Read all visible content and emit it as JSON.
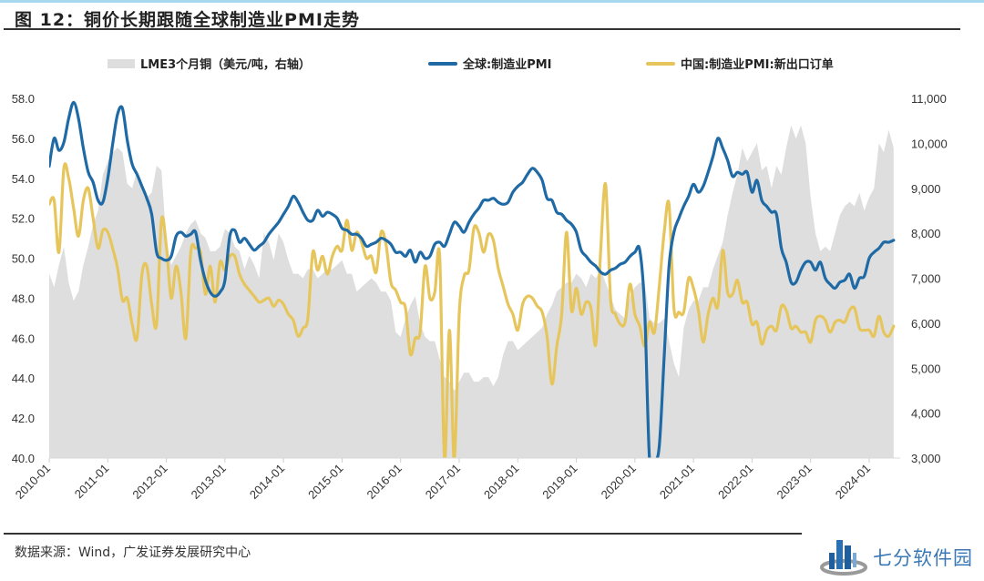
{
  "figure": {
    "title": "图 12：铜价长期跟随全球制造业PMI走势",
    "source": "数据来源：Wind，广发证券发展研究中心",
    "watermark": "七分软件园"
  },
  "colors": {
    "area": "#dedede",
    "global_pmi": "#1f6aa5",
    "china_export": "#e6c65c"
  },
  "chart_data": {
    "type": "line",
    "title": "铜价长期跟随全球制造业PMI走势",
    "xlabel": "",
    "ylabel": "",
    "y2label": "",
    "ylim": [
      40,
      58
    ],
    "y2lim": [
      3000,
      11000
    ],
    "yticks": [
      "58.0",
      "56.0",
      "54.0",
      "52.0",
      "50.0",
      "48.0",
      "46.0",
      "44.0",
      "42.0",
      "40.0"
    ],
    "y2ticks": [
      "11,000",
      "10,000",
      "9,000",
      "8,000",
      "7,000",
      "6,000",
      "5,000",
      "4,000",
      "3,000"
    ],
    "xticks": [
      "2010-01",
      "2011-01",
      "2012-01",
      "2013-01",
      "2014-01",
      "2015-01",
      "2016-01",
      "2017-01",
      "2018-01",
      "2019-01",
      "2020-01",
      "2021-01",
      "2022-01",
      "2023-01",
      "2024-01"
    ],
    "x_start": "2010-01",
    "x_end": "2024-06",
    "grid": false,
    "legend_position": "top",
    "series": [
      {
        "name": "LME3个月铜（美元/吨，右轴）",
        "type": "area",
        "axis": "right",
        "values": [
          7100,
          6800,
          7300,
          7700,
          6900,
          6500,
          6700,
          7300,
          7700,
          8200,
          8500,
          9300,
          9600,
          9800,
          9900,
          9800,
          9100,
          9000,
          9400,
          9000,
          8800,
          8900,
          9500,
          9400,
          7800,
          7300,
          7500,
          7700,
          8000,
          8200,
          8300,
          8000,
          7900,
          7600,
          7600,
          7700,
          8100,
          8000,
          7700,
          7600,
          7200,
          7500,
          7300,
          7000,
          7600,
          8000,
          7800,
          7400,
          8000,
          7800,
          7400,
          7100,
          7100,
          7000,
          7200,
          7200,
          7000,
          7100,
          7200,
          7200,
          7300,
          7400,
          7100,
          7100,
          6700,
          6800,
          6900,
          7000,
          6900,
          6700,
          6700,
          6500,
          5800,
          5700,
          6100,
          6400,
          6600,
          6000,
          5700,
          5600,
          5600,
          5200,
          4800,
          4700,
          4500,
          4700,
          4900,
          4900,
          4700,
          4700,
          4800,
          4800,
          4600,
          4800,
          5300,
          5600,
          5600,
          5400,
          5500,
          5600,
          5700,
          5800,
          5900,
          6200,
          6400,
          6700,
          6800,
          6900,
          6900,
          7100,
          7000,
          6800,
          7100,
          7000,
          7200,
          6900,
          6600,
          6300,
          6200,
          6100,
          6600,
          6800,
          6900,
          6900,
          6100,
          6000,
          6000,
          6100,
          5600,
          5100,
          4800,
          5100,
          5900,
          6300,
          6500,
          6500,
          6800,
          6800,
          7200,
          7500,
          7800,
          8400,
          8900,
          9300,
          9900,
          9600,
          9800,
          10000,
          9400,
          9500,
          9000,
          9500,
          9300,
          9900,
          10400,
          10100,
          10400,
          10000,
          8800,
          8000,
          7600,
          7700,
          7600,
          8000,
          8400,
          8600,
          8700,
          8600,
          8900,
          8500,
          8800,
          9000,
          10000,
          9800,
          10300,
          9900
        ]
      },
      {
        "name": "全球:制造业PMI",
        "type": "line",
        "axis": "left",
        "values": [
          54.6,
          56.0,
          55.4,
          55.8,
          57.0,
          57.8,
          57.0,
          55.5,
          54.6,
          54.3,
          53.8,
          52.9,
          52.8,
          54.0,
          55.7,
          57.2,
          57.5,
          55.9,
          54.7,
          54.2,
          53.6,
          53.0,
          52.2,
          51.1,
          50.3,
          50.0,
          49.9,
          50.1,
          51.1,
          51.3,
          51.1,
          51.2,
          51.3,
          49.9,
          48.9,
          48.3,
          48.1,
          48.3,
          48.9,
          49.8,
          51.1,
          51.4,
          50.8,
          51.0,
          50.7,
          50.4,
          50.6,
          50.8,
          51.2,
          51.5,
          51.8,
          52.2,
          52.6,
          53.1,
          53.0,
          52.8,
          52.3,
          51.9,
          51.9,
          52.4,
          52.1,
          52.3,
          52.2,
          52.0,
          51.5,
          51.4,
          51.2,
          51.2,
          51.0,
          50.7,
          50.6,
          50.7,
          50.8,
          51.0,
          50.9,
          50.7,
          50.3,
          50.3,
          50.1,
          50.4,
          49.8,
          50.3,
          50.0,
          50.1,
          50.7,
          51.0,
          50.8,
          50.6,
          51.2,
          51.8,
          51.6,
          51.3,
          51.8,
          52.2,
          52.5,
          52.9,
          52.9,
          53.0,
          52.8,
          52.7,
          52.7,
          52.8,
          53.3,
          53.6,
          53.8,
          54.2,
          54.5,
          54.3,
          53.9,
          53.0,
          52.9,
          52.3,
          52.2,
          51.9,
          51.7,
          51.3,
          50.8,
          50.4,
          50.1,
          49.8,
          49.6,
          49.3,
          49.2,
          49.4,
          49.5,
          49.7,
          49.8,
          50.1,
          50.3,
          50.4,
          47.4,
          47.3,
          39.9,
          37.0,
          40.6,
          45.1,
          49.6,
          51.3,
          52.0,
          52.6,
          53.1,
          53.7,
          53.3,
          53.6,
          54.3,
          55.1,
          55.9,
          56.0,
          55.5,
          54.9,
          54.1,
          54.3,
          54.2,
          54.3,
          53.3,
          53.9,
          52.9,
          52.6,
          52.3,
          52.2,
          50.5,
          49.8,
          49.4,
          48.8,
          48.8,
          49.4,
          49.8,
          49.8,
          49.4,
          49.8,
          49.0,
          48.7,
          48.5,
          48.8,
          48.9,
          49.2,
          48.5,
          49.1,
          49.0,
          49.1,
          50.0,
          50.3,
          50.5,
          50.8,
          50.8,
          50.9
        ]
      },
      {
        "name": "中国:制造业PMI:新出口订单",
        "type": "line",
        "axis": "left",
        "values": [
          52.7,
          53.3,
          52.9,
          50.3,
          52.2,
          54.5,
          54.5,
          54.0,
          52.5,
          51.5,
          51.1,
          51.8,
          52.9,
          53.1,
          53.5,
          52.0,
          51.8,
          50.5,
          50.6,
          51.4,
          51.3,
          50.7,
          50.5,
          50.4,
          49.5,
          47.9,
          51.1,
          48.0,
          50.5,
          46.7,
          46.0,
          46.3,
          49.2,
          46.5,
          49.6,
          47.7,
          47.0,
          46.7,
          49.9,
          51.9,
          51.5,
          50.6,
          48.0,
          48.4,
          49.6,
          50.7,
          48.3,
          46.0,
          49.2,
          50.3,
          50.1,
          50.5,
          50.3,
          49.4,
          48.2,
          48.6,
          49.6,
          47.8,
          48.4,
          49.8,
          48.3,
          49.4,
          50.1,
          50.6,
          50.1,
          49.4,
          49.2,
          48.9,
          48.7,
          48.4,
          48.1,
          48.1,
          48.2,
          47.8,
          47.9,
          48.1,
          48.0,
          47.8,
          47.6,
          47.9,
          48.1,
          47.7,
          47.3,
          47.2,
          46.9,
          46.4,
          46.1,
          46.8,
          46.5,
          47.0,
          50.6,
          50.3,
          50.0,
          49.4,
          49.6,
          50.1,
          49.2,
          49.6,
          50.1,
          50.2,
          50.6,
          50.4,
          50.3,
          51.9,
          51.7,
          50.4,
          51.3,
          51.0,
          50.8,
          52.2,
          50.0,
          50.1,
          49.3,
          49.3,
          51.5,
          51.3,
          50.7,
          51.3,
          48.8,
          48.6,
          48.4,
          47.9,
          47.8,
          47.5,
          47.9,
          45.2,
          47.7,
          46.0,
          46.3,
          48.1,
          49.6,
          47.6,
          48.0,
          48.3,
          49.7,
          50.1,
          49.6,
          29.1,
          46.4,
          33.5,
          35.3,
          42.6,
          47.2,
          49.1,
          48.4,
          49.4,
          50.6,
          51.5,
          51.4,
          51.3,
          50.3,
          49.6,
          51.2,
          51.9,
          50.9,
          49.5,
          48.7,
          48.6,
          48.4,
          47.7,
          47.2,
          46.6,
          46.4,
          46.7,
          47.7,
          48.1,
          48.4,
          48.0,
          48.8,
          47.6,
          47.3,
          47.1,
          46.1,
          45.1,
          43.7,
          36.9,
          45.6,
          47.2,
          49.1,
          51.3,
          47.3,
          47.4,
          48.5,
          48.1,
          47.2,
          48.8,
          47.8,
          47.5,
          46.2,
          45.7,
          46.3,
          50.4,
          53.7,
          52.6,
          48.0,
          47.6,
          47.2,
          46.7,
          46.7,
          46.8,
          47.8,
          48.7,
          47.7,
          47.2,
          46.6,
          46.1,
          45.6,
          47.7,
          46.8,
          46.3,
          46.2,
          48.6,
          50.3,
          51.3,
          52.7,
          53.3,
          47.5,
          47.2,
          47.3,
          47.3,
          48.3,
          49.0,
          48.7,
          48.5,
          47.4,
          45.3,
          45.8,
          46.6,
          47.2,
          48.8,
          48.0,
          47.6,
          48.9,
          50.4,
          50.2,
          48.3,
          48.2,
          48.6,
          48.9,
          48.4,
          47.8,
          47.8,
          48.6,
          46.7,
          47.4,
          46.8,
          45.7,
          47.2,
          46.4,
          46.4,
          46.6,
          46.4,
          46.8,
          47.6,
          47.1,
          47.4,
          47.0,
          46.5,
          46.6,
          46.3,
          46.3,
          46.4,
          46.3,
          45.8,
          46.8,
          46.9,
          47.2,
          47.1,
          46.9,
          46.3,
          46.3,
          46.4,
          46.8,
          46.9,
          47.0,
          46.8,
          47.2,
          47.4,
          47.5,
          46.9,
          46.5,
          46.5,
          46.4,
          46.5,
          46.4,
          46.1,
          46.8,
          47.1,
          47.0,
          46.3,
          46.1,
          46.2,
          46.6
        ]
      }
    ]
  }
}
